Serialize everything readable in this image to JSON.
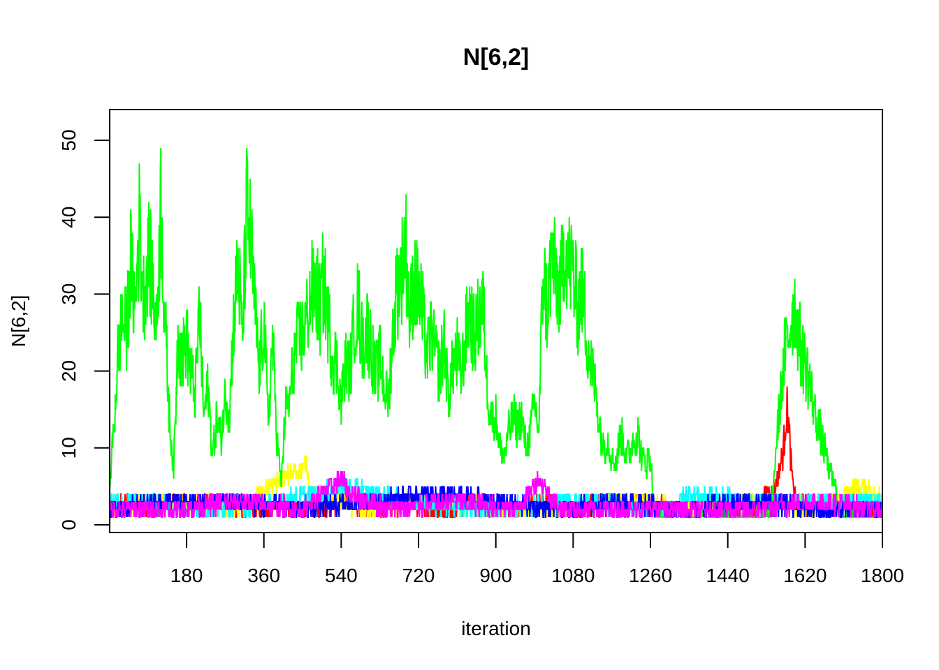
{
  "chart_data": {
    "type": "line",
    "title": "N[6,2]",
    "xlabel": "iteration",
    "ylabel": "N[6,2]",
    "xlim": [
      1,
      1800
    ],
    "ylim": [
      0,
      52
    ],
    "x_ticks": [
      180,
      360,
      540,
      720,
      900,
      1080,
      1260,
      1440,
      1620,
      1800
    ],
    "y_ticks": [
      0,
      10,
      20,
      30,
      40,
      50
    ],
    "grid": false,
    "legend": "none",
    "series": [
      {
        "color": "#00ff00",
        "kind": "trace",
        "values": [
          [
            1,
            5
          ],
          [
            10,
            12
          ],
          [
            20,
            22
          ],
          [
            30,
            27
          ],
          [
            40,
            25
          ],
          [
            50,
            34
          ],
          [
            60,
            28
          ],
          [
            70,
            39
          ],
          [
            80,
            30
          ],
          [
            90,
            35
          ],
          [
            100,
            32
          ],
          [
            110,
            25
          ],
          [
            120,
            42
          ],
          [
            130,
            26
          ],
          [
            140,
            14
          ],
          [
            150,
            7
          ],
          [
            160,
            25
          ],
          [
            170,
            22
          ],
          [
            180,
            24
          ],
          [
            190,
            20
          ],
          [
            200,
            17
          ],
          [
            210,
            28
          ],
          [
            220,
            14
          ],
          [
            230,
            18
          ],
          [
            240,
            9
          ],
          [
            250,
            14
          ],
          [
            260,
            11
          ],
          [
            270,
            17
          ],
          [
            280,
            15
          ],
          [
            290,
            27
          ],
          [
            300,
            34
          ],
          [
            310,
            24
          ],
          [
            320,
            41
          ],
          [
            330,
            36
          ],
          [
            340,
            27
          ],
          [
            350,
            20
          ],
          [
            360,
            27
          ],
          [
            370,
            13
          ],
          [
            380,
            24
          ],
          [
            390,
            12
          ],
          [
            400,
            5
          ],
          [
            410,
            15
          ],
          [
            420,
            16
          ],
          [
            430,
            22
          ],
          [
            440,
            24
          ],
          [
            450,
            25
          ],
          [
            460,
            27
          ],
          [
            470,
            30
          ],
          [
            480,
            31
          ],
          [
            490,
            28
          ],
          [
            500,
            32
          ],
          [
            510,
            26
          ],
          [
            520,
            22
          ],
          [
            530,
            21
          ],
          [
            540,
            16
          ],
          [
            550,
            21
          ],
          [
            560,
            20
          ],
          [
            570,
            26
          ],
          [
            580,
            29
          ],
          [
            590,
            23
          ],
          [
            600,
            26
          ],
          [
            610,
            23
          ],
          [
            620,
            19
          ],
          [
            630,
            22
          ],
          [
            640,
            18
          ],
          [
            650,
            16
          ],
          [
            660,
            25
          ],
          [
            670,
            31
          ],
          [
            680,
            33
          ],
          [
            690,
            37
          ],
          [
            700,
            27
          ],
          [
            710,
            32
          ],
          [
            720,
            30
          ],
          [
            730,
            27
          ],
          [
            740,
            22
          ],
          [
            750,
            25
          ],
          [
            760,
            22
          ],
          [
            770,
            20
          ],
          [
            780,
            24
          ],
          [
            790,
            16
          ],
          [
            800,
            21
          ],
          [
            810,
            22
          ],
          [
            820,
            19
          ],
          [
            830,
            25
          ],
          [
            840,
            28
          ],
          [
            850,
            24
          ],
          [
            860,
            27
          ],
          [
            870,
            29
          ],
          [
            880,
            18
          ],
          [
            890,
            14
          ],
          [
            900,
            14
          ],
          [
            910,
            10
          ],
          [
            920,
            9
          ],
          [
            930,
            12
          ],
          [
            940,
            14
          ],
          [
            950,
            13
          ],
          [
            960,
            14
          ],
          [
            970,
            10
          ],
          [
            980,
            12
          ],
          [
            990,
            16
          ],
          [
            1000,
            12
          ],
          [
            1010,
            33
          ],
          [
            1020,
            28
          ],
          [
            1030,
            35
          ],
          [
            1040,
            32
          ],
          [
            1050,
            30
          ],
          [
            1060,
            37
          ],
          [
            1070,
            34
          ],
          [
            1080,
            33
          ],
          [
            1090,
            28
          ],
          [
            1100,
            31
          ],
          [
            1110,
            26
          ],
          [
            1120,
            21
          ],
          [
            1130,
            18
          ],
          [
            1140,
            14
          ],
          [
            1150,
            10
          ],
          [
            1160,
            11
          ],
          [
            1170,
            9
          ],
          [
            1180,
            8
          ],
          [
            1190,
            12
          ],
          [
            1200,
            10
          ],
          [
            1210,
            9
          ],
          [
            1220,
            11
          ],
          [
            1230,
            12
          ],
          [
            1240,
            9
          ],
          [
            1250,
            8
          ],
          [
            1260,
            9
          ],
          [
            1270,
            1
          ],
          [
            1540,
            1
          ],
          [
            1545,
            4
          ],
          [
            1555,
            12
          ],
          [
            1565,
            18
          ],
          [
            1575,
            23
          ],
          [
            1585,
            26
          ],
          [
            1595,
            29
          ],
          [
            1605,
            24
          ],
          [
            1615,
            22
          ],
          [
            1625,
            20
          ],
          [
            1635,
            17
          ],
          [
            1645,
            14
          ],
          [
            1655,
            12
          ],
          [
            1665,
            10
          ],
          [
            1675,
            7
          ],
          [
            1685,
            6
          ],
          [
            1695,
            4
          ],
          [
            1700,
            1
          ],
          [
            1800,
            1
          ]
        ]
      },
      {
        "color": "#ff0000",
        "kind": "trace",
        "values": [
          [
            1,
            2
          ],
          [
            50,
            3
          ],
          [
            100,
            2
          ],
          [
            150,
            3
          ],
          [
            200,
            2
          ],
          [
            250,
            3
          ],
          [
            300,
            2
          ],
          [
            350,
            2
          ],
          [
            400,
            3
          ],
          [
            450,
            2
          ],
          [
            500,
            2
          ],
          [
            550,
            3
          ],
          [
            600,
            2
          ],
          [
            650,
            2
          ],
          [
            700,
            3
          ],
          [
            750,
            2
          ],
          [
            800,
            2
          ],
          [
            850,
            3
          ],
          [
            900,
            2
          ],
          [
            950,
            2
          ],
          [
            1000,
            3
          ],
          [
            1050,
            2
          ],
          [
            1100,
            2
          ],
          [
            1150,
            3
          ],
          [
            1200,
            2
          ],
          [
            1250,
            3
          ],
          [
            1300,
            2
          ],
          [
            1350,
            2
          ],
          [
            1400,
            3
          ],
          [
            1450,
            2
          ],
          [
            1500,
            2
          ],
          [
            1550,
            5
          ],
          [
            1560,
            7
          ],
          [
            1570,
            10
          ],
          [
            1575,
            14
          ],
          [
            1580,
            15
          ],
          [
            1585,
            10
          ],
          [
            1590,
            6
          ],
          [
            1600,
            3
          ],
          [
            1650,
            2
          ],
          [
            1700,
            3
          ],
          [
            1750,
            2
          ],
          [
            1800,
            2
          ]
        ]
      },
      {
        "color": "#ffff00",
        "kind": "noise",
        "values": [
          [
            1,
            2
          ],
          [
            150,
            3
          ],
          [
            300,
            2
          ],
          [
            460,
            8
          ],
          [
            470,
            4
          ],
          [
            600,
            2
          ],
          [
            750,
            3
          ],
          [
            900,
            2
          ],
          [
            1050,
            2
          ],
          [
            1200,
            3
          ],
          [
            1350,
            2
          ],
          [
            1500,
            3
          ],
          [
            1650,
            2
          ],
          [
            1750,
            5
          ],
          [
            1800,
            3
          ]
        ]
      },
      {
        "color": "#00ffff",
        "kind": "noise",
        "values": [
          [
            1,
            3
          ],
          [
            200,
            2
          ],
          [
            400,
            3
          ],
          [
            550,
            5
          ],
          [
            700,
            3
          ],
          [
            900,
            2
          ],
          [
            1100,
            3
          ],
          [
            1300,
            2
          ],
          [
            1350,
            4
          ],
          [
            1500,
            3
          ],
          [
            1700,
            3
          ],
          [
            1800,
            3
          ]
        ]
      },
      {
        "color": "#0000ff",
        "kind": "noise",
        "values": [
          [
            1,
            2
          ],
          [
            150,
            3
          ],
          [
            300,
            3
          ],
          [
            450,
            2
          ],
          [
            600,
            3
          ],
          [
            750,
            4
          ],
          [
            900,
            3
          ],
          [
            1050,
            2
          ],
          [
            1200,
            3
          ],
          [
            1350,
            2
          ],
          [
            1500,
            3
          ],
          [
            1650,
            2
          ],
          [
            1800,
            2
          ]
        ]
      },
      {
        "color": "#ff00ff",
        "kind": "noise",
        "values": [
          [
            1,
            2
          ],
          [
            150,
            2
          ],
          [
            300,
            3
          ],
          [
            450,
            2
          ],
          [
            540,
            6
          ],
          [
            560,
            4
          ],
          [
            650,
            2
          ],
          [
            800,
            3
          ],
          [
            950,
            2
          ],
          [
            1000,
            6
          ],
          [
            1050,
            2
          ],
          [
            1200,
            2
          ],
          [
            1350,
            2
          ],
          [
            1500,
            2
          ],
          [
            1650,
            3
          ],
          [
            1800,
            2
          ]
        ]
      }
    ]
  }
}
